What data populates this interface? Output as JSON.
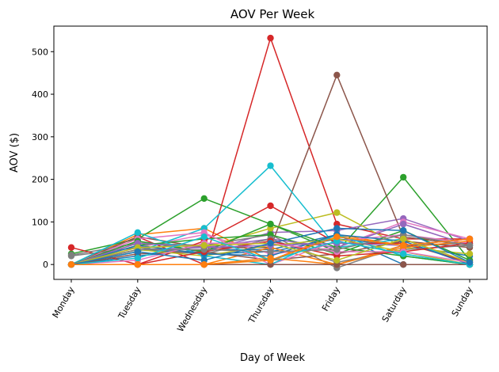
{
  "chart_data": {
    "type": "line",
    "title": "AOV Per Week",
    "xlabel": "Day of Week",
    "ylabel": "AOV ($)",
    "categories": [
      "Monday",
      "Tuesday",
      "Wednesday",
      "Thursday",
      "Friday",
      "Saturday",
      "Sunday"
    ],
    "yticks": [
      0,
      100,
      200,
      300,
      400,
      500
    ],
    "ylim": [
      -35,
      560
    ],
    "grid": false,
    "legend": "none",
    "colors": [
      "#1f77b4",
      "#ff7f0e",
      "#2ca02c",
      "#d62728",
      "#9467bd",
      "#8c564b",
      "#e377c2",
      "#7f7f7f",
      "#bcbd22",
      "#17becf"
    ],
    "series": [
      {
        "values": [
          0,
          35,
          25,
          30,
          60,
          45,
          20
        ]
      },
      {
        "values": [
          0,
          70,
          85,
          10,
          70,
          45,
          60
        ]
      },
      {
        "values": [
          25,
          60,
          155,
          95,
          30,
          205,
          10
        ]
      },
      {
        "values": [
          0,
          65,
          0,
          532,
          95,
          60,
          60
        ]
      },
      {
        "values": [
          0,
          55,
          30,
          75,
          80,
          108,
          55
        ]
      },
      {
        "values": [
          0,
          65,
          40,
          40,
          445,
          65,
          45
        ]
      },
      {
        "values": [
          0,
          40,
          70,
          25,
          40,
          100,
          60
        ]
      },
      {
        "values": [
          22,
          50,
          45,
          70,
          -8,
          45,
          50
        ]
      },
      {
        "values": [
          0,
          50,
          40,
          85,
          122,
          40,
          25
        ]
      },
      {
        "values": [
          0,
          30,
          85,
          232,
          40,
          60,
          0
        ]
      },
      {
        "values": [
          0,
          20,
          35,
          35,
          70,
          0,
          0
        ]
      },
      {
        "values": [
          0,
          0,
          0,
          40,
          0,
          45,
          60
        ]
      },
      {
        "values": [
          0,
          45,
          60,
          70,
          25,
          80,
          10
        ]
      },
      {
        "values": [
          40,
          0,
          55,
          138,
          50,
          50,
          5
        ]
      },
      {
        "values": [
          0,
          35,
          40,
          60,
          40,
          95,
          45
        ]
      },
      {
        "values": [
          0,
          25,
          30,
          10,
          25,
          55,
          40
        ]
      },
      {
        "values": [
          0,
          60,
          75,
          0,
          55,
          70,
          50
        ]
      },
      {
        "values": [
          20,
          40,
          25,
          60,
          5,
          35,
          45
        ]
      },
      {
        "values": [
          0,
          35,
          20,
          45,
          60,
          30,
          0
        ]
      },
      {
        "values": [
          0,
          75,
          20,
          0,
          70,
          20,
          0
        ]
      },
      {
        "values": [
          0,
          45,
          25,
          20,
          70,
          55,
          0
        ]
      },
      {
        "values": [
          0,
          0,
          0,
          15,
          0,
          40,
          55
        ]
      },
      {
        "values": [
          0,
          55,
          30,
          95,
          40,
          20,
          0
        ]
      },
      {
        "values": [
          0,
          0,
          30,
          55,
          20,
          30,
          50
        ]
      },
      {
        "values": [
          0,
          50,
          40,
          45,
          50,
          45,
          60
        ]
      },
      {
        "values": [
          0,
          0,
          0,
          0,
          0,
          0,
          0
        ]
      },
      {
        "values": [
          0,
          10,
          50,
          50,
          30,
          30,
          5
        ]
      },
      {
        "values": [
          0,
          35,
          35,
          30,
          35,
          70,
          45
        ]
      },
      {
        "values": [
          0,
          40,
          45,
          50,
          10,
          60,
          5
        ]
      },
      {
        "values": [
          0,
          15,
          65,
          10,
          55,
          25,
          0
        ]
      },
      {
        "values": [
          0,
          30,
          10,
          50,
          85,
          80,
          5
        ]
      },
      {
        "values": [
          0,
          0,
          0,
          10,
          65,
          45,
          60
        ]
      }
    ]
  }
}
